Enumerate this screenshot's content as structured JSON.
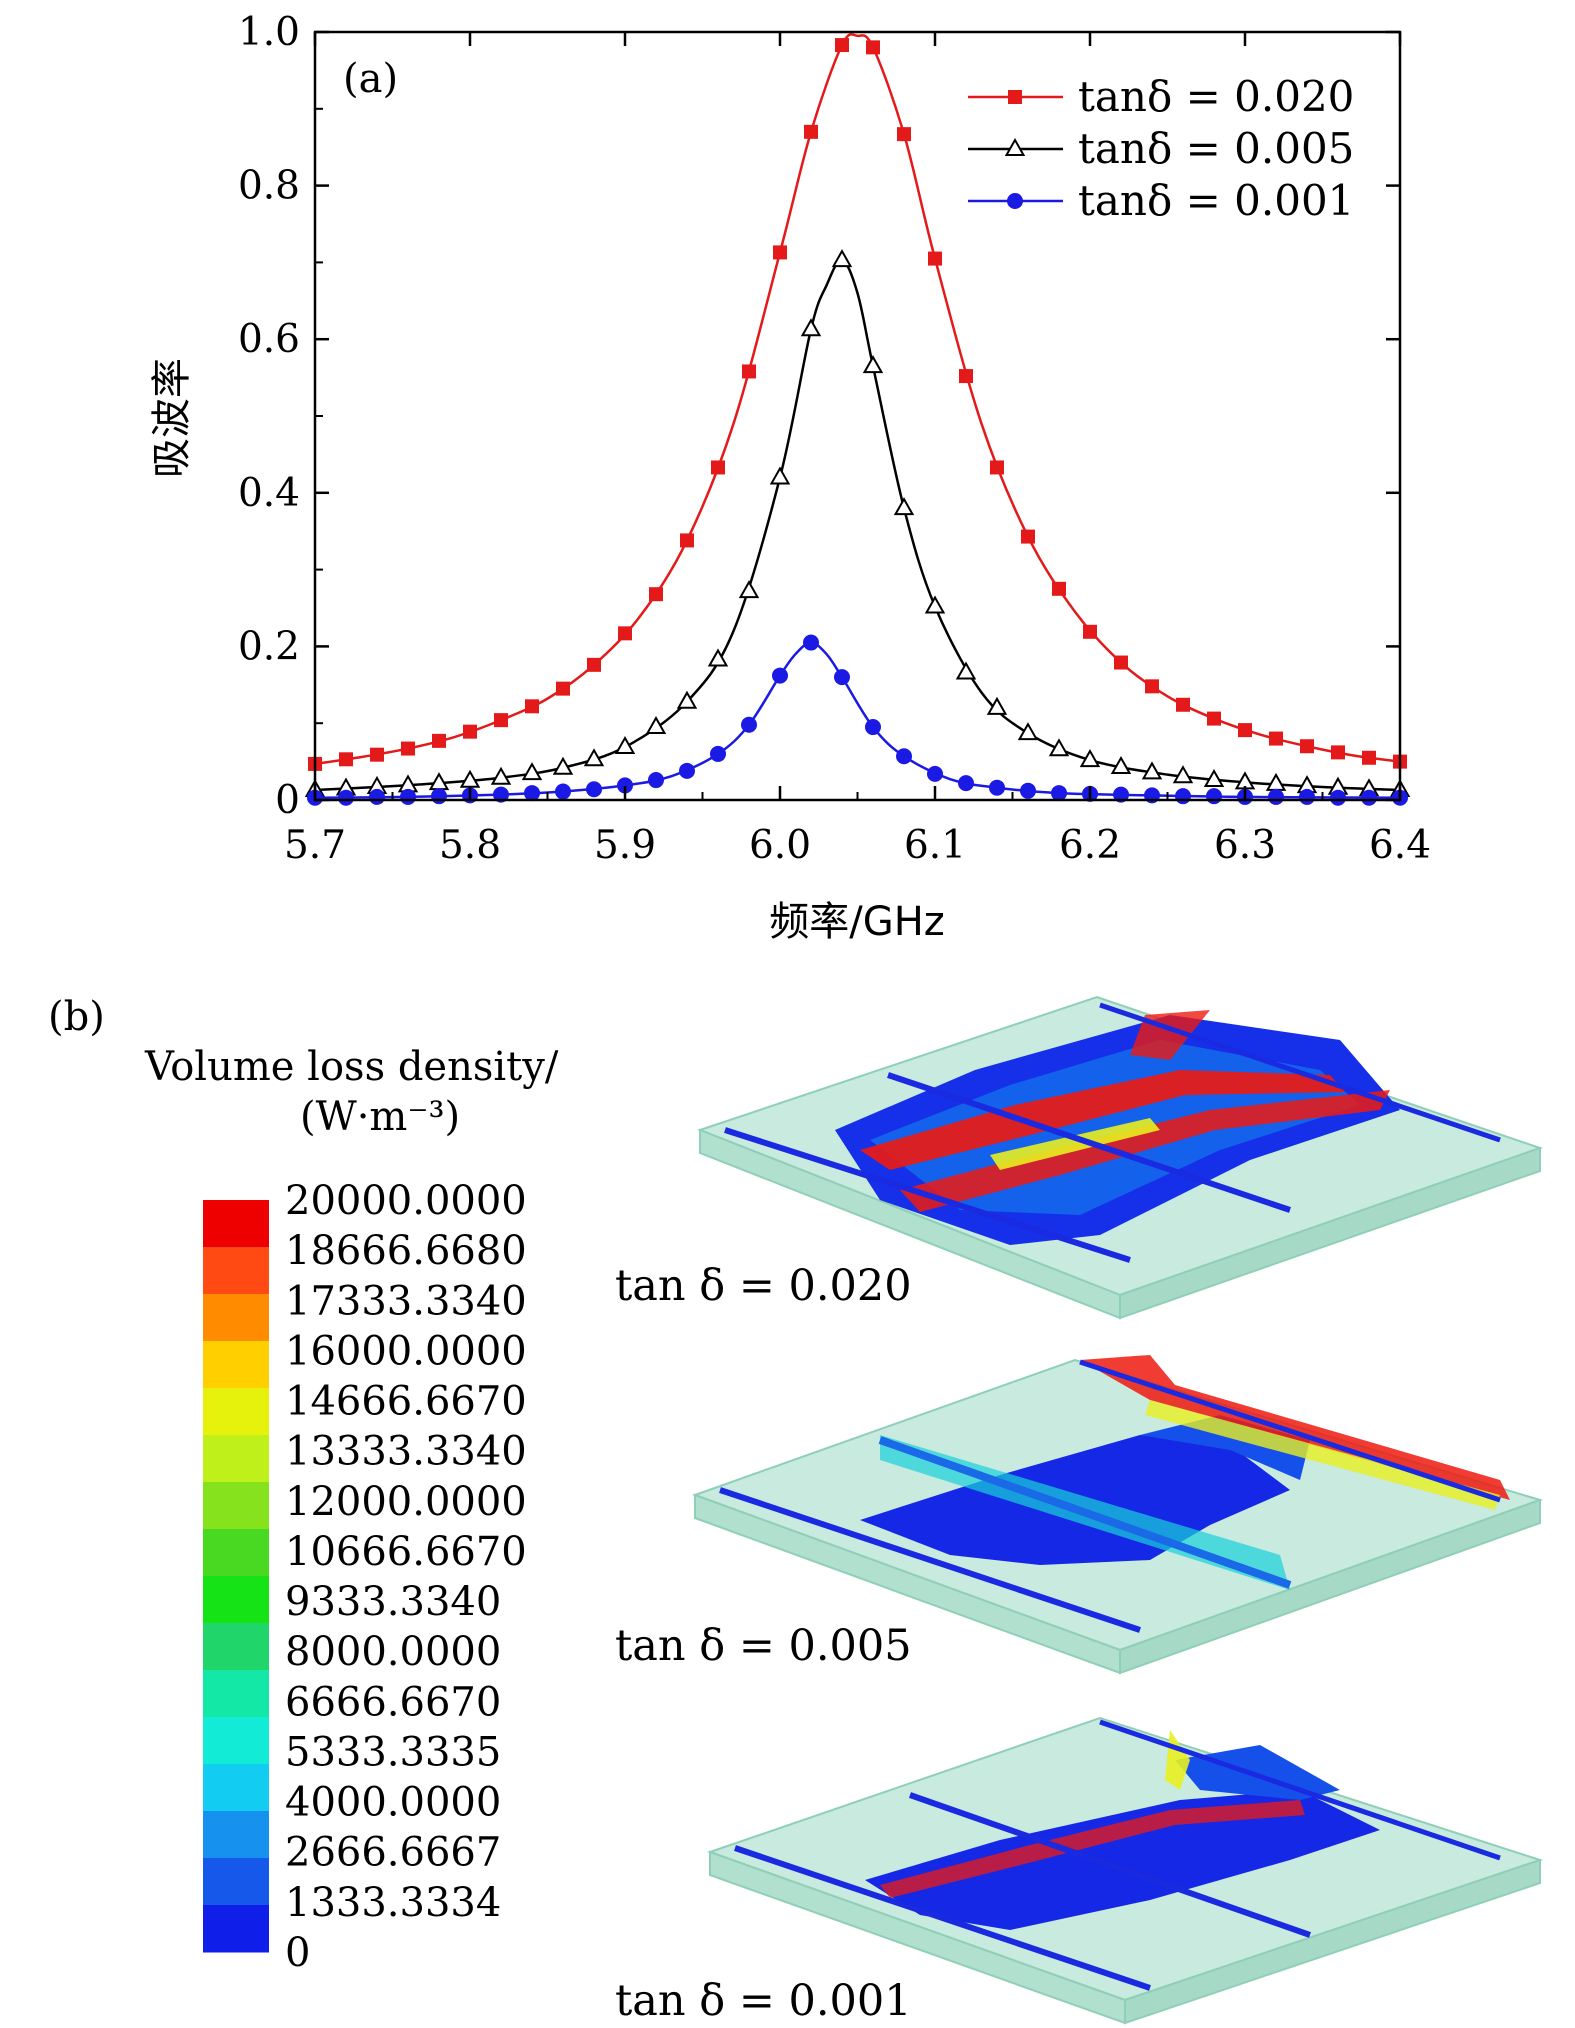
{
  "chart_data": [
    {
      "type": "line",
      "panel_label": "(a)",
      "xlabel": "频率/GHz",
      "ylabel": "吸波率",
      "xlim": [
        5.7,
        6.4
      ],
      "ylim": [
        0,
        1.0
      ],
      "xticks": [
        "5.7",
        "5.8",
        "5.9",
        "6.0",
        "6.1",
        "6.2",
        "6.3",
        "6.4"
      ],
      "yticks": [
        "0",
        "0.2",
        "0.4",
        "0.6",
        "0.8",
        "1.0"
      ],
      "legend_position": "top-right",
      "series": [
        {
          "name": "tanδ = 0.020",
          "marker": "square",
          "color": "#e41a1a",
          "x": [
            5.7,
            5.72,
            5.74,
            5.76,
            5.78,
            5.8,
            5.82,
            5.84,
            5.86,
            5.88,
            5.9,
            5.92,
            5.94,
            5.96,
            5.98,
            6.0,
            6.02,
            6.04,
            6.06,
            6.08,
            6.1,
            6.12,
            6.14,
            6.16,
            6.18,
            6.2,
            6.22,
            6.24,
            6.26,
            6.28,
            6.3,
            6.32,
            6.34,
            6.36,
            6.38,
            6.4
          ],
          "y": [
            0.047,
            0.053,
            0.059,
            0.067,
            0.077,
            0.089,
            0.104,
            0.122,
            0.145,
            0.176,
            0.217,
            0.268,
            0.338,
            0.433,
            0.558,
            0.713,
            0.87,
            0.983,
            0.98,
            0.867,
            0.705,
            0.552,
            0.433,
            0.343,
            0.275,
            0.219,
            0.179,
            0.148,
            0.124,
            0.106,
            0.091,
            0.08,
            0.07,
            0.062,
            0.055,
            0.05
          ],
          "curve_x": [
            5.7,
            5.73,
            5.76,
            5.79,
            5.82,
            5.85,
            5.88,
            5.91,
            5.94,
            5.97,
            6.0,
            6.02,
            6.04,
            6.05,
            6.06,
            6.08,
            6.1,
            6.13,
            6.16,
            6.19,
            6.22,
            6.25,
            6.28,
            6.31,
            6.34,
            6.37,
            6.4
          ],
          "curve_y": [
            0.047,
            0.056,
            0.067,
            0.082,
            0.104,
            0.132,
            0.176,
            0.24,
            0.338,
            0.49,
            0.713,
            0.87,
            0.983,
            0.995,
            0.98,
            0.867,
            0.705,
            0.49,
            0.343,
            0.246,
            0.179,
            0.135,
            0.106,
            0.085,
            0.07,
            0.058,
            0.05
          ]
        },
        {
          "name": "tanδ = 0.005",
          "marker": "triangle-open",
          "color": "#000000",
          "x": [
            5.7,
            5.72,
            5.74,
            5.76,
            5.78,
            5.8,
            5.82,
            5.84,
            5.86,
            5.88,
            5.9,
            5.92,
            5.94,
            5.96,
            5.98,
            6.0,
            6.02,
            6.04,
            6.06,
            6.08,
            6.1,
            6.12,
            6.14,
            6.16,
            6.18,
            6.2,
            6.22,
            6.24,
            6.26,
            6.28,
            6.3,
            6.32,
            6.34,
            6.36,
            6.38,
            6.4
          ],
          "y": [
            0.013,
            0.015,
            0.017,
            0.019,
            0.022,
            0.025,
            0.029,
            0.035,
            0.042,
            0.053,
            0.069,
            0.095,
            0.128,
            0.183,
            0.272,
            0.42,
            0.613,
            0.703,
            0.565,
            0.38,
            0.252,
            0.166,
            0.12,
            0.087,
            0.066,
            0.052,
            0.043,
            0.036,
            0.031,
            0.026,
            0.023,
            0.021,
            0.018,
            0.016,
            0.014,
            0.013
          ],
          "curve_x": [
            5.7,
            5.74,
            5.78,
            5.82,
            5.86,
            5.9,
            5.94,
            5.97,
            6.0,
            6.02,
            6.03,
            6.04,
            6.05,
            6.06,
            6.08,
            6.1,
            6.13,
            6.16,
            6.2,
            6.25,
            6.3,
            6.35,
            6.4
          ],
          "curve_y": [
            0.013,
            0.017,
            0.022,
            0.029,
            0.042,
            0.069,
            0.128,
            0.22,
            0.42,
            0.613,
            0.67,
            0.703,
            0.66,
            0.565,
            0.38,
            0.252,
            0.14,
            0.087,
            0.052,
            0.033,
            0.023,
            0.017,
            0.013
          ]
        },
        {
          "name": "tanδ = 0.001",
          "marker": "circle",
          "color": "#1a1ae4",
          "x": [
            5.7,
            5.72,
            5.74,
            5.76,
            5.78,
            5.8,
            5.82,
            5.84,
            5.86,
            5.88,
            5.9,
            5.92,
            5.94,
            5.96,
            5.98,
            6.0,
            6.02,
            6.04,
            6.06,
            6.08,
            6.1,
            6.12,
            6.14,
            6.16,
            6.18,
            6.2,
            6.22,
            6.24,
            6.26,
            6.28,
            6.3,
            6.32,
            6.34,
            6.36,
            6.38,
            6.4
          ],
          "y": [
            0.003,
            0.003,
            0.004,
            0.004,
            0.005,
            0.006,
            0.007,
            0.009,
            0.011,
            0.014,
            0.019,
            0.026,
            0.038,
            0.06,
            0.098,
            0.162,
            0.205,
            0.16,
            0.095,
            0.057,
            0.034,
            0.022,
            0.016,
            0.012,
            0.009,
            0.008,
            0.007,
            0.006,
            0.005,
            0.005,
            0.004,
            0.004,
            0.004,
            0.003,
            0.003,
            0.003
          ],
          "curve_x": [
            5.7,
            5.76,
            5.82,
            5.86,
            5.9,
            5.93,
            5.96,
            5.98,
            6.0,
            6.01,
            6.02,
            6.03,
            6.04,
            6.06,
            6.08,
            6.11,
            6.14,
            6.18,
            6.24,
            6.3,
            6.4
          ],
          "curve_y": [
            0.003,
            0.004,
            0.007,
            0.011,
            0.019,
            0.031,
            0.06,
            0.098,
            0.162,
            0.19,
            0.205,
            0.19,
            0.16,
            0.095,
            0.057,
            0.027,
            0.016,
            0.009,
            0.006,
            0.004,
            0.003
          ]
        }
      ]
    },
    {
      "type": "heatmap",
      "panel_label": "(b)",
      "colorbar_title_line1": "Volume loss density/",
      "colorbar_title_line2": "(W·m⁻³)",
      "colorbar_labels": [
        "20000.0000",
        "18666.6680",
        "17333.3340",
        "16000.0000",
        "14666.6670",
        "13333.3340",
        "12000.0000",
        "10666.6670",
        "9333.3340",
        "8000.0000",
        "6666.6670",
        "5333.3335",
        "4000.0000",
        "2666.6667",
        "1333.3334",
        "0"
      ],
      "colorbar_colors": [
        "#ee0000",
        "#ff4a14",
        "#ff8c00",
        "#ffcf00",
        "#e7f20c",
        "#bff01a",
        "#86e21c",
        "#4ad922",
        "#16e316",
        "#20d66a",
        "#14e8a6",
        "#12ecd6",
        "#12ccf2",
        "#1692ee",
        "#1659ea",
        "#0f1ee8"
      ],
      "panels": [
        {
          "caption": "tan δ = 0.020"
        },
        {
          "caption": "tan δ = 0.005"
        },
        {
          "caption": "tan δ = 0.001"
        }
      ]
    }
  ]
}
